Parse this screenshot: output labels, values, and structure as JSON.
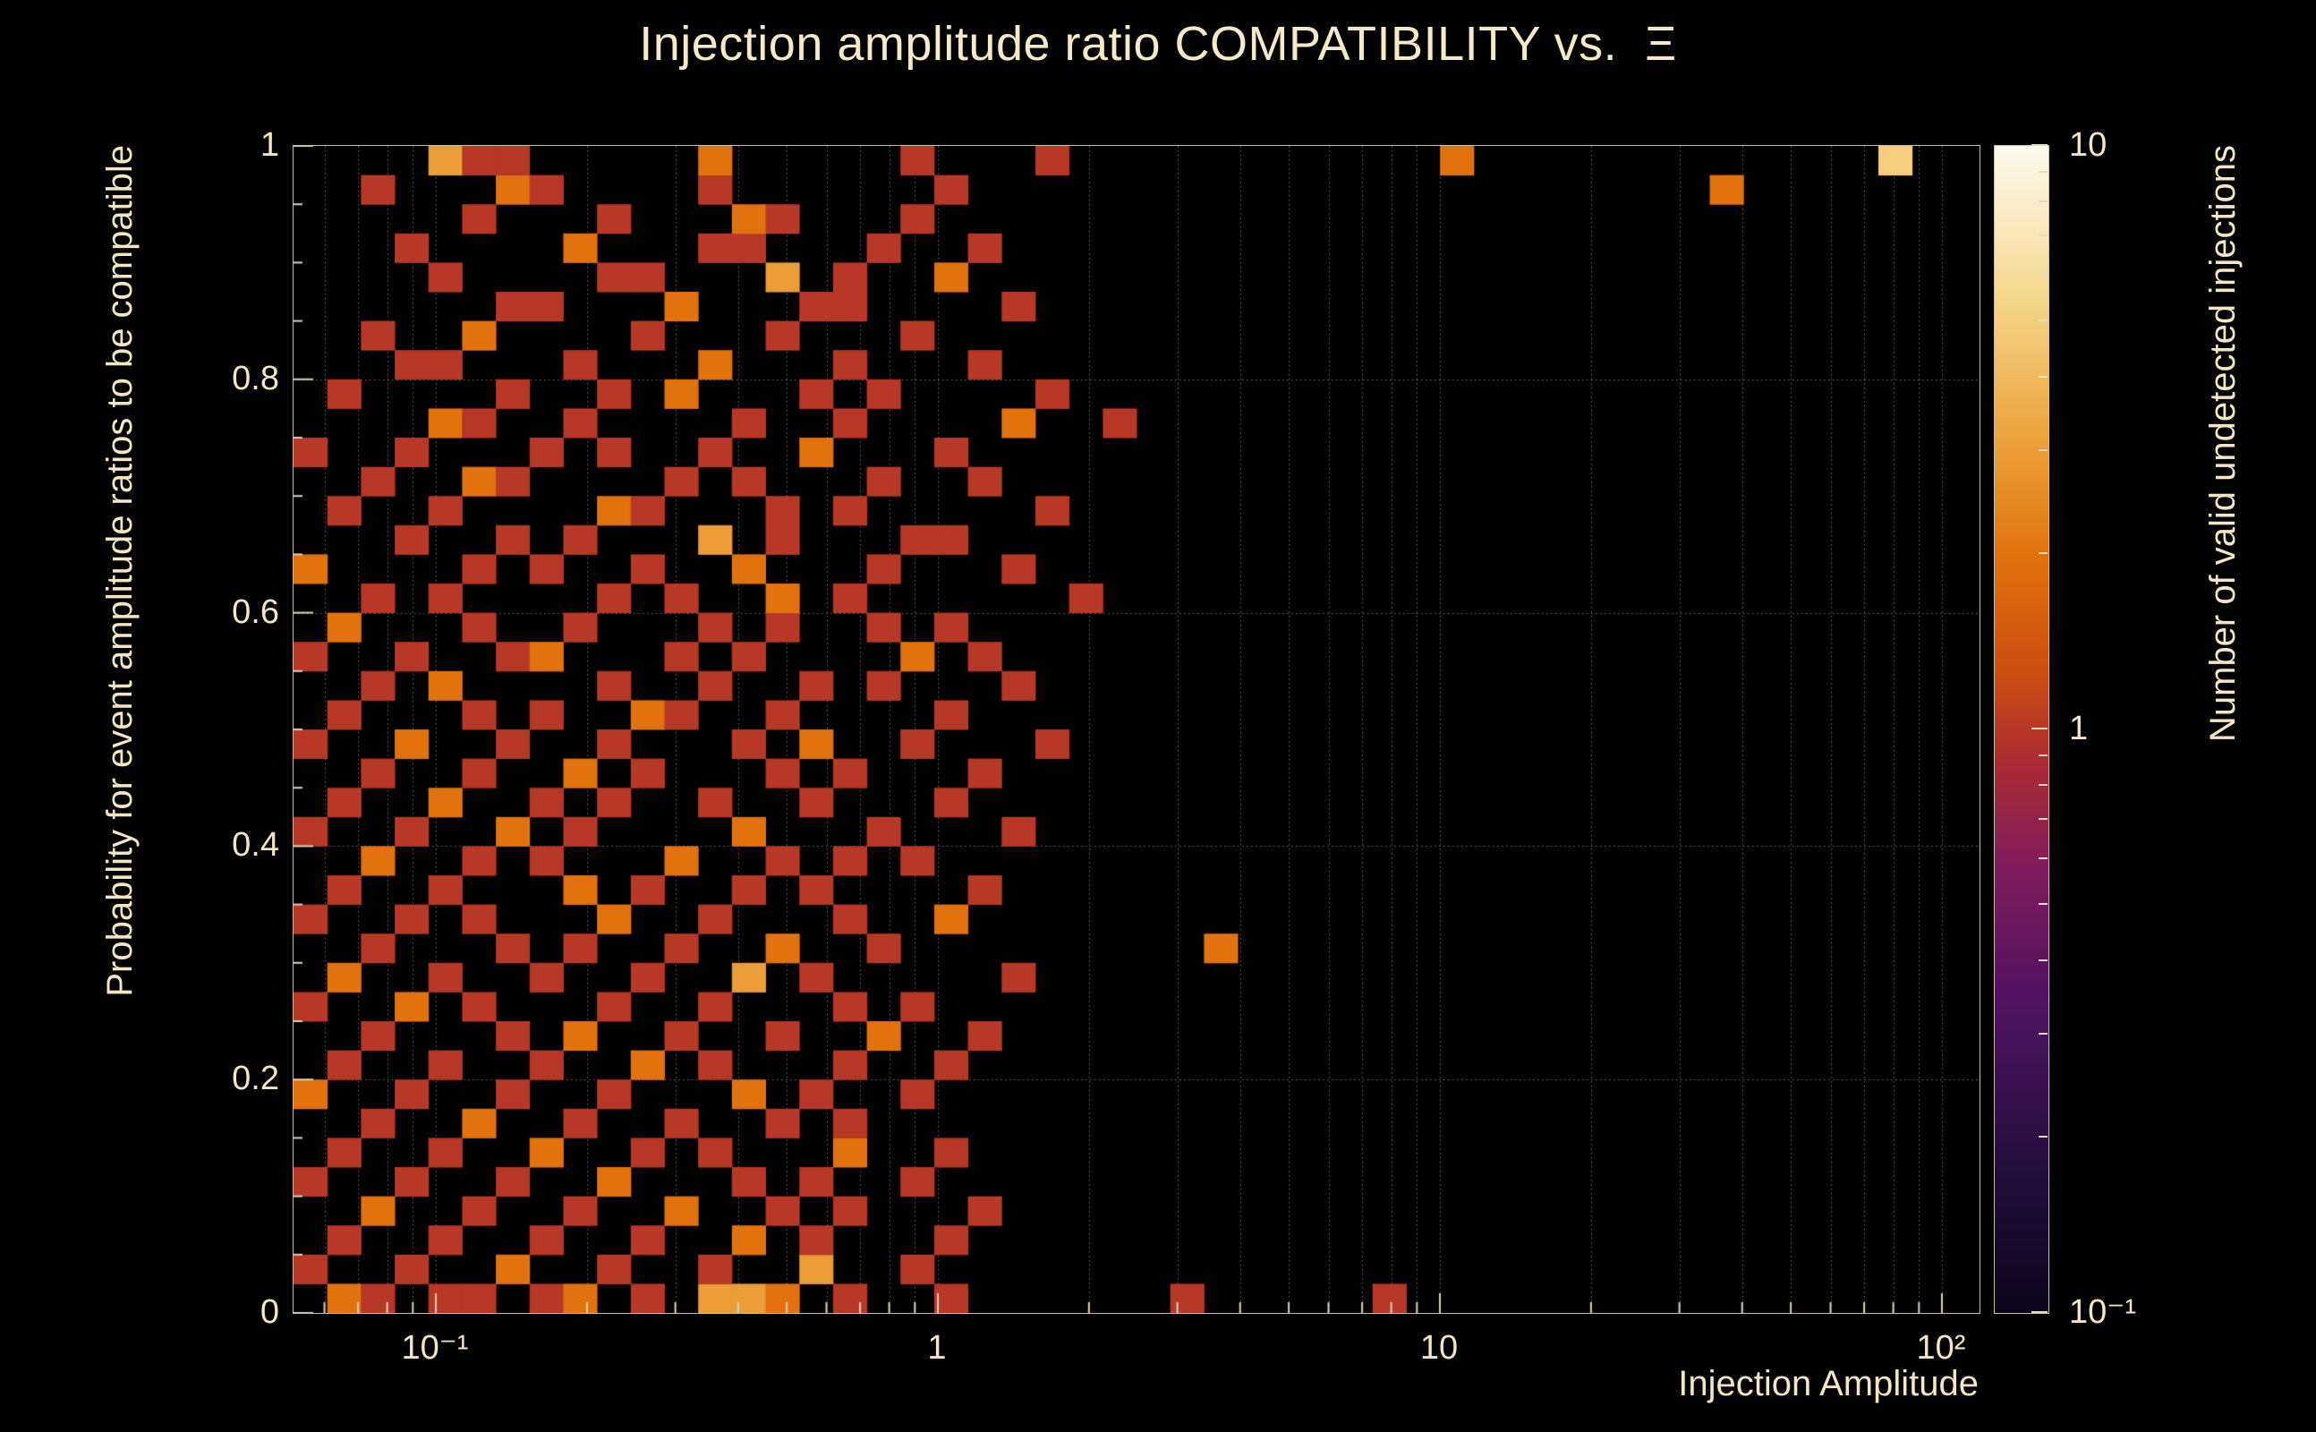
{
  "title": "Injection amplitude ratio COMPATIBILITY vs.  Ξ",
  "x_axis": {
    "label": "Injection Amplitude",
    "ticks": [
      {
        "log": -1,
        "label": "10⁻¹"
      },
      {
        "log": 0,
        "label": "1"
      },
      {
        "log": 1,
        "label": "10"
      },
      {
        "log": 2,
        "label": "10²"
      }
    ]
  },
  "y_axis": {
    "label": "Probability for event amplitude ratios to be compatible",
    "ticks": [
      {
        "v": 0,
        "label": "0"
      },
      {
        "v": 0.2,
        "label": "0.2"
      },
      {
        "v": 0.4,
        "label": "0.4"
      },
      {
        "v": 0.6,
        "label": "0.6"
      },
      {
        "v": 0.8,
        "label": "0.8"
      },
      {
        "v": 1,
        "label": "1"
      }
    ]
  },
  "colorbar": {
    "label": "Number of valid undetected injections",
    "ticks": [
      {
        "v": 10,
        "label": "10"
      },
      {
        "v": 1,
        "label": "1"
      },
      {
        "v": 0.1,
        "label": "10⁻¹"
      }
    ],
    "palette": [
      [
        0.0,
        "#0b0418"
      ],
      [
        0.13,
        "#241040"
      ],
      [
        0.27,
        "#521262"
      ],
      [
        0.38,
        "#7f1c5d"
      ],
      [
        0.47,
        "#ab2a34"
      ],
      [
        0.55,
        "#cc4e10"
      ],
      [
        0.65,
        "#e2720e"
      ],
      [
        0.75,
        "#eca33c"
      ],
      [
        0.87,
        "#f5d78d"
      ],
      [
        1.0,
        "#fdfbf0"
      ]
    ]
  },
  "colors": {
    "background": "#000000",
    "text": "#f2e6c4",
    "grid": "#d8cdb4",
    "axis": "#ddd3bb"
  },
  "chart_data": {
    "type": "heatmap",
    "title": "Injection amplitude ratio COMPATIBILITY vs. Ξ",
    "xlabel": "Injection Amplitude",
    "ylabel": "Probability for event amplitude ratios to be compatible",
    "zlabel": "Number of valid undetected injections",
    "x_scale": "log",
    "x_log_range": [
      -1.2834,
      2.0749
    ],
    "x_bins": 50,
    "y_range": [
      0,
      1
    ],
    "y_bins": 40,
    "z_scale": "log",
    "z_range": [
      0.1,
      10
    ],
    "grid": true,
    "cells": [
      [
        1,
        0,
        2
      ],
      [
        2,
        0,
        1
      ],
      [
        4,
        0,
        1
      ],
      [
        5,
        0,
        1
      ],
      [
        7,
        0,
        1
      ],
      [
        8,
        0,
        2
      ],
      [
        10,
        0,
        1
      ],
      [
        12,
        0,
        3
      ],
      [
        13,
        0,
        3
      ],
      [
        14,
        0,
        2
      ],
      [
        16,
        0,
        1
      ],
      [
        19,
        0,
        1
      ],
      [
        26,
        0,
        1
      ],
      [
        32,
        0,
        1
      ],
      [
        0,
        1,
        1
      ],
      [
        3,
        1,
        1
      ],
      [
        6,
        1,
        2
      ],
      [
        9,
        1,
        1
      ],
      [
        12,
        1,
        1
      ],
      [
        15,
        1,
        3
      ],
      [
        18,
        1,
        1
      ],
      [
        1,
        2,
        1
      ],
      [
        4,
        2,
        1
      ],
      [
        7,
        2,
        1
      ],
      [
        10,
        2,
        1
      ],
      [
        13,
        2,
        2
      ],
      [
        15,
        2,
        1
      ],
      [
        19,
        2,
        1
      ],
      [
        2,
        3,
        2
      ],
      [
        5,
        3,
        1
      ],
      [
        8,
        3,
        1
      ],
      [
        11,
        3,
        2
      ],
      [
        14,
        3,
        1
      ],
      [
        16,
        3,
        1
      ],
      [
        20,
        3,
        1
      ],
      [
        0,
        4,
        1
      ],
      [
        3,
        4,
        1
      ],
      [
        6,
        4,
        1
      ],
      [
        9,
        4,
        2
      ],
      [
        13,
        4,
        1
      ],
      [
        15,
        4,
        1
      ],
      [
        18,
        4,
        1
      ],
      [
        1,
        5,
        1
      ],
      [
        4,
        5,
        1
      ],
      [
        7,
        5,
        2
      ],
      [
        10,
        5,
        1
      ],
      [
        12,
        5,
        1
      ],
      [
        16,
        5,
        2
      ],
      [
        19,
        5,
        1
      ],
      [
        2,
        6,
        1
      ],
      [
        5,
        6,
        2
      ],
      [
        8,
        6,
        1
      ],
      [
        11,
        6,
        1
      ],
      [
        14,
        6,
        1
      ],
      [
        16,
        6,
        1
      ],
      [
        0,
        7,
        2
      ],
      [
        3,
        7,
        1
      ],
      [
        6,
        7,
        1
      ],
      [
        9,
        7,
        1
      ],
      [
        13,
        7,
        2
      ],
      [
        15,
        7,
        1
      ],
      [
        18,
        7,
        1
      ],
      [
        1,
        8,
        1
      ],
      [
        4,
        8,
        1
      ],
      [
        7,
        8,
        1
      ],
      [
        10,
        8,
        2
      ],
      [
        12,
        8,
        1
      ],
      [
        16,
        8,
        1
      ],
      [
        19,
        8,
        1
      ],
      [
        2,
        9,
        1
      ],
      [
        6,
        9,
        1
      ],
      [
        8,
        9,
        2
      ],
      [
        11,
        9,
        1
      ],
      [
        14,
        9,
        1
      ],
      [
        17,
        9,
        2
      ],
      [
        20,
        9,
        1
      ],
      [
        0,
        10,
        1
      ],
      [
        3,
        10,
        2
      ],
      [
        5,
        10,
        1
      ],
      [
        9,
        10,
        1
      ],
      [
        12,
        10,
        1
      ],
      [
        16,
        10,
        1
      ],
      [
        18,
        10,
        1
      ],
      [
        1,
        11,
        2
      ],
      [
        4,
        11,
        1
      ],
      [
        7,
        11,
        1
      ],
      [
        10,
        11,
        1
      ],
      [
        13,
        11,
        3
      ],
      [
        15,
        11,
        1
      ],
      [
        21,
        11,
        1
      ],
      [
        2,
        12,
        1
      ],
      [
        6,
        12,
        1
      ],
      [
        8,
        12,
        1
      ],
      [
        11,
        12,
        1
      ],
      [
        14,
        12,
        2
      ],
      [
        17,
        12,
        1
      ],
      [
        27,
        12,
        2
      ],
      [
        0,
        13,
        1
      ],
      [
        3,
        13,
        1
      ],
      [
        5,
        13,
        1
      ],
      [
        9,
        13,
        2
      ],
      [
        12,
        13,
        1
      ],
      [
        16,
        13,
        1
      ],
      [
        19,
        13,
        2
      ],
      [
        1,
        14,
        1
      ],
      [
        4,
        14,
        1
      ],
      [
        8,
        14,
        2
      ],
      [
        10,
        14,
        1
      ],
      [
        13,
        14,
        1
      ],
      [
        15,
        14,
        1
      ],
      [
        20,
        14,
        1
      ],
      [
        2,
        15,
        2
      ],
      [
        5,
        15,
        1
      ],
      [
        7,
        15,
        1
      ],
      [
        11,
        15,
        2
      ],
      [
        14,
        15,
        1
      ],
      [
        16,
        15,
        1
      ],
      [
        18,
        15,
        1
      ],
      [
        0,
        16,
        1
      ],
      [
        3,
        16,
        1
      ],
      [
        6,
        16,
        2
      ],
      [
        8,
        16,
        1
      ],
      [
        13,
        16,
        2
      ],
      [
        17,
        16,
        1
      ],
      [
        21,
        16,
        1
      ],
      [
        1,
        17,
        1
      ],
      [
        4,
        17,
        2
      ],
      [
        7,
        17,
        1
      ],
      [
        9,
        17,
        1
      ],
      [
        12,
        17,
        1
      ],
      [
        15,
        17,
        1
      ],
      [
        19,
        17,
        1
      ],
      [
        2,
        18,
        1
      ],
      [
        5,
        18,
        1
      ],
      [
        8,
        18,
        2
      ],
      [
        10,
        18,
        1
      ],
      [
        14,
        18,
        1
      ],
      [
        16,
        18,
        1
      ],
      [
        20,
        18,
        1
      ],
      [
        0,
        19,
        1
      ],
      [
        3,
        19,
        2
      ],
      [
        6,
        19,
        1
      ],
      [
        9,
        19,
        1
      ],
      [
        13,
        19,
        1
      ],
      [
        15,
        19,
        2
      ],
      [
        18,
        19,
        1
      ],
      [
        22,
        19,
        1
      ],
      [
        1,
        20,
        1
      ],
      [
        5,
        20,
        1
      ],
      [
        7,
        20,
        1
      ],
      [
        10,
        20,
        2
      ],
      [
        11,
        20,
        1
      ],
      [
        14,
        20,
        1
      ],
      [
        19,
        20,
        1
      ],
      [
        2,
        21,
        1
      ],
      [
        4,
        21,
        2
      ],
      [
        9,
        21,
        1
      ],
      [
        12,
        21,
        1
      ],
      [
        15,
        21,
        1
      ],
      [
        17,
        21,
        1
      ],
      [
        21,
        21,
        1
      ],
      [
        0,
        22,
        1
      ],
      [
        3,
        22,
        1
      ],
      [
        6,
        22,
        1
      ],
      [
        7,
        22,
        2
      ],
      [
        11,
        22,
        1
      ],
      [
        13,
        22,
        1
      ],
      [
        18,
        22,
        2
      ],
      [
        20,
        22,
        1
      ],
      [
        1,
        23,
        2
      ],
      [
        5,
        23,
        1
      ],
      [
        8,
        23,
        1
      ],
      [
        12,
        23,
        1
      ],
      [
        14,
        23,
        1
      ],
      [
        17,
        23,
        1
      ],
      [
        19,
        23,
        1
      ],
      [
        2,
        24,
        1
      ],
      [
        4,
        24,
        1
      ],
      [
        9,
        24,
        1
      ],
      [
        11,
        24,
        1
      ],
      [
        14,
        24,
        2
      ],
      [
        16,
        24,
        1
      ],
      [
        23,
        24,
        1
      ],
      [
        0,
        25,
        2
      ],
      [
        5,
        25,
        1
      ],
      [
        7,
        25,
        1
      ],
      [
        10,
        25,
        1
      ],
      [
        13,
        25,
        2
      ],
      [
        17,
        25,
        1
      ],
      [
        21,
        25,
        1
      ],
      [
        3,
        26,
        1
      ],
      [
        6,
        26,
        1
      ],
      [
        8,
        26,
        1
      ],
      [
        12,
        26,
        3
      ],
      [
        14,
        26,
        1
      ],
      [
        18,
        26,
        1
      ],
      [
        19,
        26,
        1
      ],
      [
        1,
        27,
        1
      ],
      [
        4,
        27,
        1
      ],
      [
        9,
        27,
        2
      ],
      [
        10,
        27,
        1
      ],
      [
        14,
        27,
        1
      ],
      [
        16,
        27,
        1
      ],
      [
        22,
        27,
        1
      ],
      [
        2,
        28,
        1
      ],
      [
        5,
        28,
        2
      ],
      [
        6,
        28,
        1
      ],
      [
        11,
        28,
        1
      ],
      [
        13,
        28,
        1
      ],
      [
        17,
        28,
        1
      ],
      [
        20,
        28,
        1
      ],
      [
        0,
        29,
        1
      ],
      [
        3,
        29,
        1
      ],
      [
        7,
        29,
        1
      ],
      [
        9,
        29,
        1
      ],
      [
        12,
        29,
        1
      ],
      [
        15,
        29,
        2
      ],
      [
        19,
        29,
        1
      ],
      [
        4,
        30,
        2
      ],
      [
        5,
        30,
        1
      ],
      [
        8,
        30,
        1
      ],
      [
        13,
        30,
        1
      ],
      [
        16,
        30,
        1
      ],
      [
        21,
        30,
        2
      ],
      [
        24,
        30,
        1
      ],
      [
        1,
        31,
        1
      ],
      [
        6,
        31,
        1
      ],
      [
        9,
        31,
        1
      ],
      [
        11,
        31,
        2
      ],
      [
        15,
        31,
        1
      ],
      [
        17,
        31,
        1
      ],
      [
        22,
        31,
        1
      ],
      [
        3,
        32,
        1
      ],
      [
        4,
        32,
        1
      ],
      [
        8,
        32,
        1
      ],
      [
        12,
        32,
        2
      ],
      [
        16,
        32,
        1
      ],
      [
        20,
        32,
        1
      ],
      [
        2,
        33,
        1
      ],
      [
        5,
        33,
        2
      ],
      [
        10,
        33,
        1
      ],
      [
        14,
        33,
        1
      ],
      [
        18,
        33,
        1
      ],
      [
        6,
        34,
        1
      ],
      [
        7,
        34,
        1
      ],
      [
        11,
        34,
        2
      ],
      [
        15,
        34,
        1
      ],
      [
        16,
        34,
        1
      ],
      [
        21,
        34,
        1
      ],
      [
        4,
        35,
        1
      ],
      [
        9,
        35,
        1
      ],
      [
        10,
        35,
        1
      ],
      [
        14,
        35,
        3
      ],
      [
        16,
        35,
        1
      ],
      [
        19,
        35,
        2
      ],
      [
        3,
        36,
        1
      ],
      [
        8,
        36,
        2
      ],
      [
        12,
        36,
        1
      ],
      [
        13,
        36,
        1
      ],
      [
        17,
        36,
        1
      ],
      [
        20,
        36,
        1
      ],
      [
        5,
        37,
        1
      ],
      [
        9,
        37,
        1
      ],
      [
        13,
        37,
        2
      ],
      [
        14,
        37,
        1
      ],
      [
        18,
        37,
        1
      ],
      [
        2,
        38,
        1
      ],
      [
        6,
        38,
        2
      ],
      [
        7,
        38,
        1
      ],
      [
        12,
        38,
        1
      ],
      [
        19,
        38,
        1
      ],
      [
        42,
        38,
        2
      ],
      [
        4,
        39,
        3
      ],
      [
        5,
        39,
        1
      ],
      [
        6,
        39,
        1
      ],
      [
        12,
        39,
        2
      ],
      [
        18,
        39,
        1
      ],
      [
        22,
        39,
        1
      ],
      [
        34,
        39,
        2
      ],
      [
        47,
        39,
        5
      ]
    ]
  }
}
